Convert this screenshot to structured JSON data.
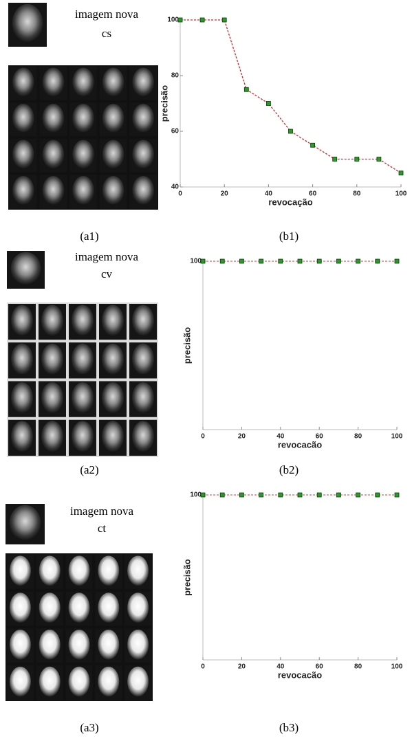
{
  "panels": [
    {
      "new_image_label": "imagem nova",
      "new_image_code": "cs",
      "image_caption": "(a1)",
      "chart_caption": "(b1)"
    },
    {
      "new_image_label": "imagem nova",
      "new_image_code": "cv",
      "image_caption": "(a2)",
      "chart_caption": "(b2)"
    },
    {
      "new_image_label": "imagem nova",
      "new_image_code": "ct",
      "image_caption": "(a3)",
      "chart_caption": "(b3)"
    }
  ],
  "chart_data": [
    {
      "type": "line",
      "x_label": "revocação",
      "y_label": "precisão",
      "x": [
        0,
        10,
        20,
        30,
        40,
        50,
        60,
        70,
        80,
        90,
        100
      ],
      "series": [
        {
          "color": "#e02020",
          "marker_color": "#2a9a2a",
          "values": [
            100,
            100,
            100,
            75,
            70,
            60,
            55,
            50,
            50,
            50,
            45
          ]
        }
      ],
      "xlim": [
        0,
        100
      ],
      "xticks": [
        0,
        20,
        40,
        60,
        80,
        100
      ],
      "ylim": [
        40,
        100
      ],
      "yticks": [
        40,
        60,
        80,
        100
      ]
    },
    {
      "type": "line",
      "x_label": "revocacão",
      "y_label": "precisão",
      "x": [
        0,
        10,
        20,
        30,
        40,
        50,
        60,
        70,
        80,
        90,
        100
      ],
      "series": [
        {
          "color": "#e06060",
          "marker_color": "#2a9a2a",
          "values": [
            100,
            100,
            100,
            100,
            100,
            100,
            100,
            100,
            100,
            100,
            100
          ]
        }
      ],
      "xlim": [
        0,
        100
      ],
      "xticks": [
        0,
        20,
        40,
        60,
        80,
        100
      ],
      "ylim": [
        0,
        100
      ],
      "yticks": [
        100
      ]
    },
    {
      "type": "line",
      "x_label": "revocacão",
      "y_label": "precisão",
      "x": [
        0,
        10,
        20,
        30,
        40,
        50,
        60,
        70,
        80,
        90,
        100
      ],
      "series": [
        {
          "color": "#e06060",
          "marker_color": "#2a9a2a",
          "values": [
            100,
            100,
            100,
            100,
            100,
            100,
            100,
            100,
            100,
            100,
            100
          ]
        }
      ],
      "xlim": [
        0,
        100
      ],
      "xticks": [
        0,
        20,
        40,
        60,
        80,
        100
      ],
      "ylim": [
        0,
        100
      ],
      "yticks": [
        100
      ]
    }
  ]
}
